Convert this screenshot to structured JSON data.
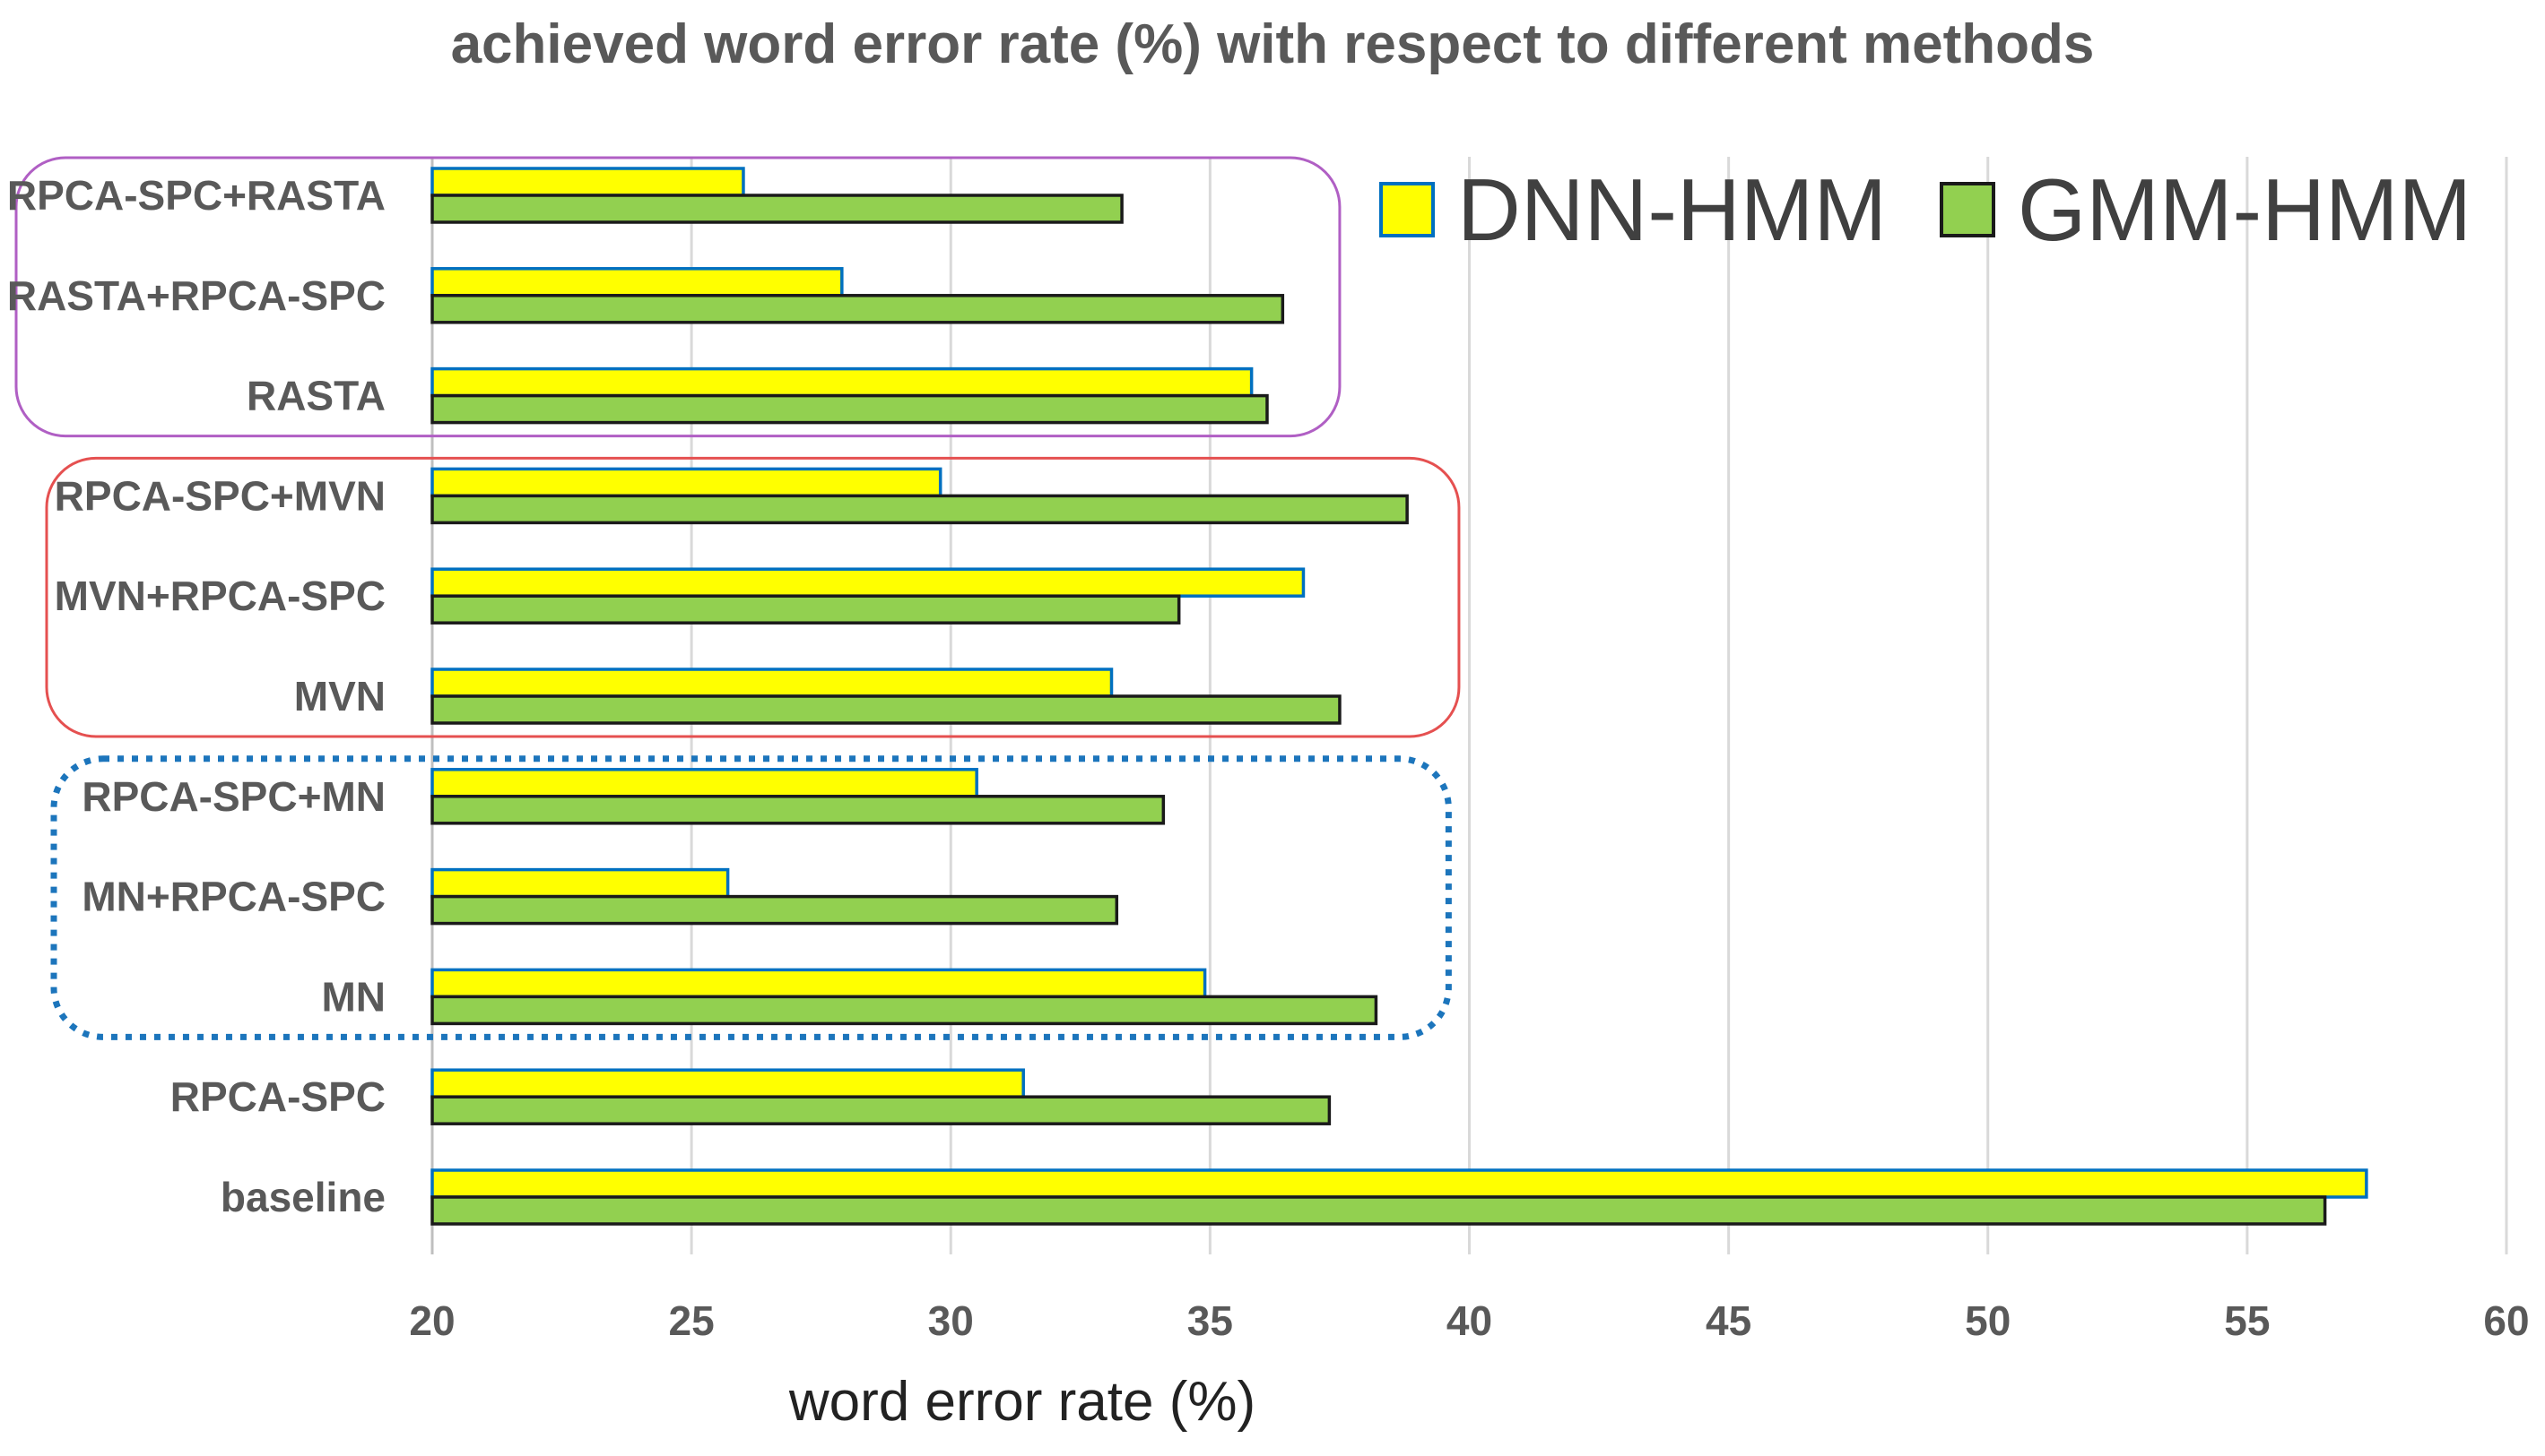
{
  "chart_data": {
    "type": "bar",
    "orientation": "horizontal",
    "title": "achieved word error rate (%) with respect to different methods",
    "xlabel": "word error rate (%)",
    "ylabel": "",
    "xlim": [
      20,
      60
    ],
    "xticks": [
      20,
      25,
      30,
      35,
      40,
      45,
      50,
      55,
      60
    ],
    "grid": "vertical",
    "legend_position": "top-right",
    "categories": [
      "RPCA-SPC+RASTA",
      "RASTA+RPCA-SPC",
      "RASTA",
      "RPCA-SPC+MVN",
      "MVN+RPCA-SPC",
      "MVN",
      "RPCA-SPC+MN",
      "MN+RPCA-SPC",
      "MN",
      "RPCA-SPC",
      "baseline"
    ],
    "series": [
      {
        "name": "DNN-HMM",
        "color": "#ffff00",
        "edge_color": "#0070c0",
        "values": [
          26.0,
          27.9,
          35.8,
          29.8,
          36.8,
          33.1,
          30.5,
          25.7,
          34.9,
          31.4,
          57.3
        ]
      },
      {
        "name": "GMM-HMM",
        "color": "#92d050",
        "edge_color": "#1a1a1a",
        "values": [
          33.3,
          36.4,
          36.1,
          38.8,
          34.4,
          37.5,
          34.1,
          33.2,
          38.2,
          37.3,
          56.5
        ]
      }
    ],
    "group_boxes": [
      {
        "categories": [
          "RPCA-SPC+RASTA",
          "RASTA+RPCA-SPC",
          "RASTA"
        ],
        "color": "#b05fc4",
        "style": "solid",
        "extends_to": 37.5
      },
      {
        "categories": [
          "RPCA-SPC+MVN",
          "MVN+RPCA-SPC",
          "MVN"
        ],
        "color": "#e55050",
        "style": "solid",
        "extends_to": 39.8
      },
      {
        "categories": [
          "RPCA-SPC+MN",
          "MN+RPCA-SPC",
          "MN"
        ],
        "color": "#1c75bc",
        "style": "dotted",
        "extends_to": 39.6
      }
    ]
  }
}
